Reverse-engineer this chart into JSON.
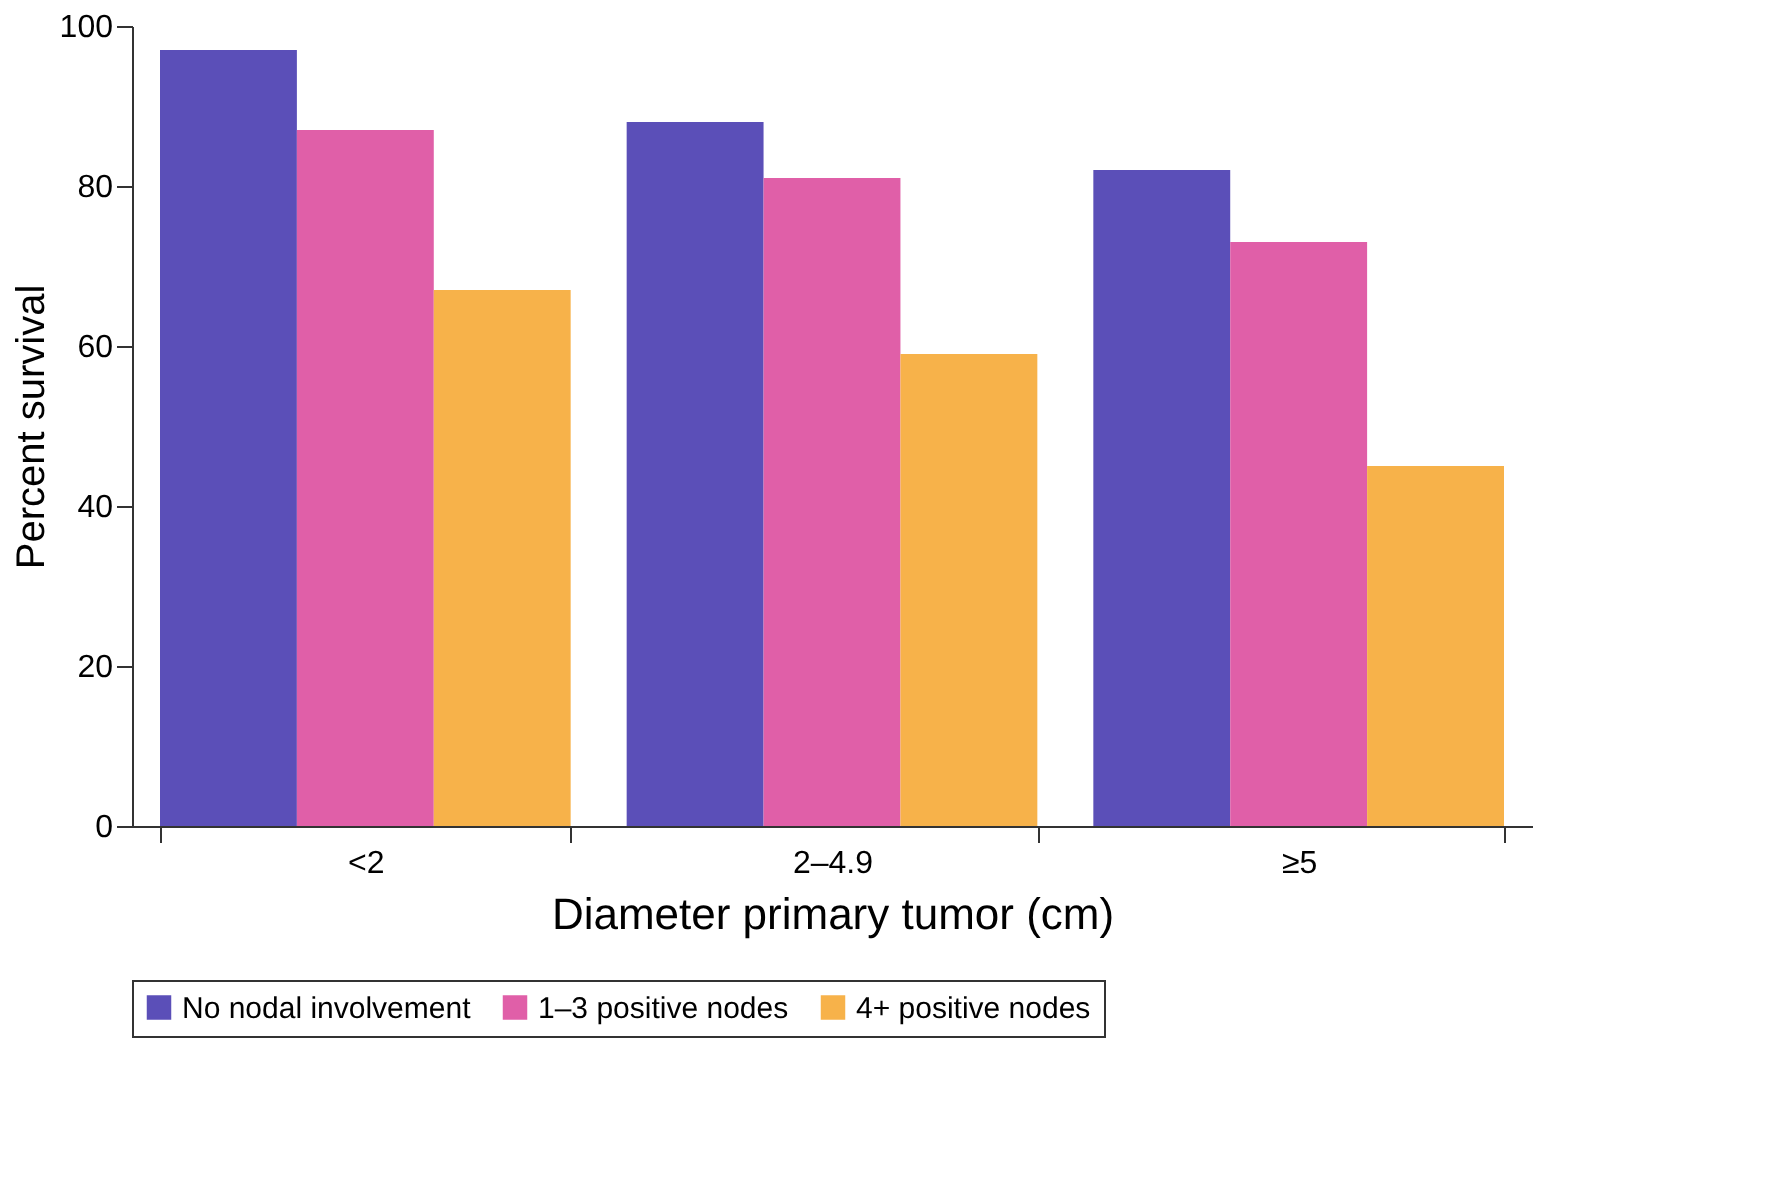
{
  "chart_data": {
    "type": "bar",
    "xlabel": "Diameter primary tumor (cm)",
    "ylabel": "Percent survival",
    "categories": [
      "<2",
      "2–4.9",
      "≥5"
    ],
    "series": [
      {
        "name": "No nodal involvement",
        "color": "#5b4fb8",
        "values": [
          97,
          88,
          82
        ]
      },
      {
        "name": "1–3 positive nodes",
        "color": "#e05fa8",
        "values": [
          87,
          81,
          73
        ]
      },
      {
        "name": "4+ positive nodes",
        "color": "#f7b24a",
        "values": [
          67,
          59,
          45
        ]
      }
    ],
    "ylim": [
      0,
      100
    ],
    "yticks": [
      0,
      20,
      40,
      60,
      80,
      100
    ],
    "grid": false,
    "legend": "bottom"
  }
}
